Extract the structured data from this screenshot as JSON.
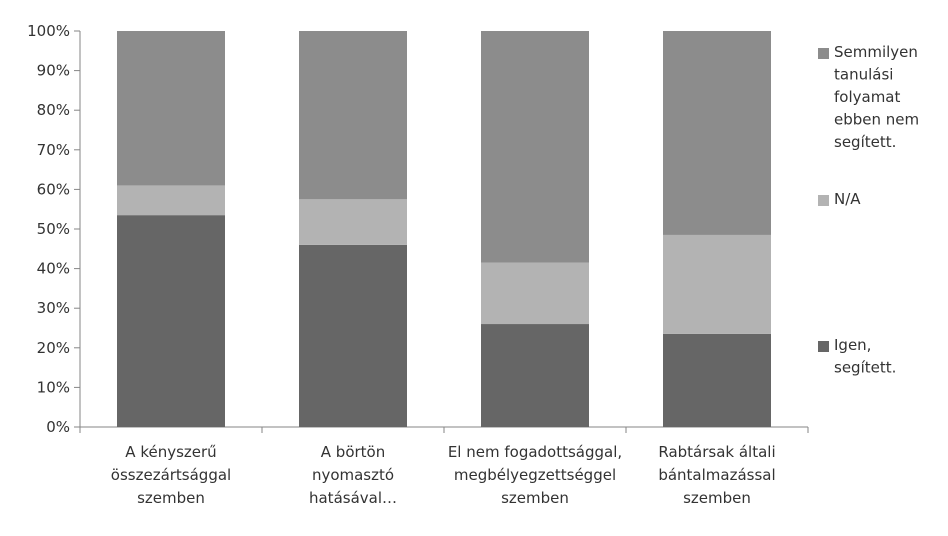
{
  "chart_data": {
    "type": "bar",
    "stacked": true,
    "percent": true,
    "ylim": [
      0,
      100
    ],
    "yticks": [
      "0%",
      "10%",
      "20%",
      "30%",
      "40%",
      "50%",
      "60%",
      "70%",
      "80%",
      "90%",
      "100%"
    ],
    "grid": false,
    "legend_position": "right",
    "categories": [
      [
        "A kényszerű",
        "összezártsággal",
        "szemben"
      ],
      [
        "A börtön",
        "nyomasztó",
        "hatásával…"
      ],
      [
        "El nem fogadottsággal,",
        "megbélyegzettséggel",
        "szemben"
      ],
      [
        "Rabtársak általi",
        "bántalmazással",
        "szemben"
      ]
    ],
    "series": [
      {
        "name": [
          "Igen,",
          "segített."
        ],
        "color": "#666666",
        "values": [
          53.5,
          46,
          26,
          23.5
        ]
      },
      {
        "name": [
          "N/A"
        ],
        "color": "#b3b3b3",
        "values": [
          7.5,
          11.5,
          15.5,
          25
        ]
      },
      {
        "name": [
          "Semmilyen",
          "tanulási",
          "folyamat",
          "ebben nem",
          "segített."
        ],
        "color": "#8c8c8c",
        "values": [
          39,
          42.5,
          58.5,
          51.5
        ]
      }
    ]
  }
}
